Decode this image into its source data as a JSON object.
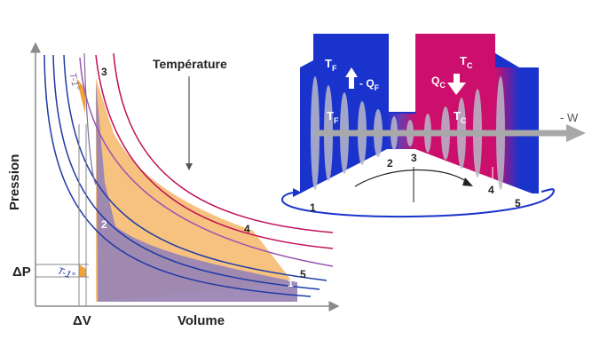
{
  "pv_diagram": {
    "x_axis_label": "Volume",
    "y_axis_label": "Pression",
    "delta_v_label": "ΔV",
    "delta_p_label": "ΔP",
    "temperature_label": "Température",
    "isotherm_label_upper": "T-1°",
    "isotherm_label_lower": "T-1°",
    "point_labels": [
      "1",
      "2",
      "3",
      "4",
      "5"
    ],
    "colors": {
      "hot_isotherm": "#c0105a",
      "cold_isotherm": "#1c3aa6",
      "adiabat": "#9a55b0",
      "cycle_area": "#f7c27f",
      "net_area": "#9b86b4"
    }
  },
  "engine": {
    "hot_temp_outer": "T",
    "hot_temp_outer_sub": "F",
    "hot_heat": "- Q",
    "hot_heat_sub": "F",
    "cold_temp_outer": "T",
    "cold_temp_outer_sub": "C",
    "cold_heat": "Q",
    "cold_heat_sub": "C",
    "hot_temp_inner": "T",
    "hot_temp_inner_sub": "F",
    "cold_temp_inner": "T",
    "cold_temp_inner_sub": "C",
    "work_label": "- W",
    "point_labels": [
      "1",
      "2",
      "3",
      "4",
      "5"
    ],
    "colors": {
      "hot_reservoir": "#1a33cc",
      "cold_reservoir": "#cc0f6c",
      "shaft": "#a8a8a8"
    }
  }
}
